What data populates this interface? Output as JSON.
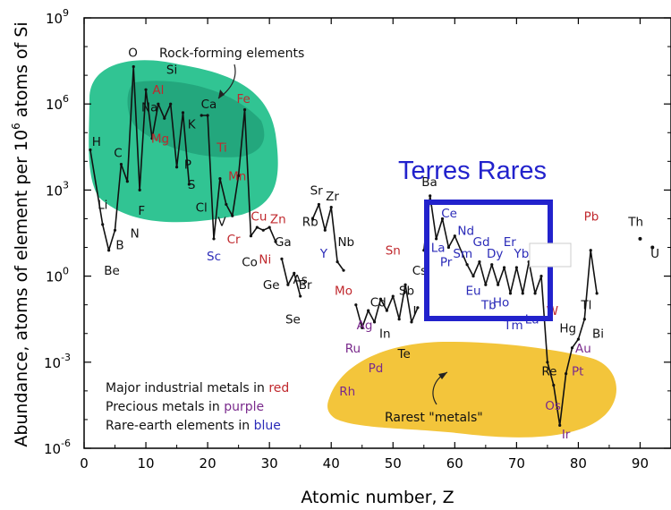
{
  "chart_data": {
    "type": "line",
    "xlabel": "Atomic number, Z",
    "ylabel": "Abundance, atoms of element per 10^6 atoms of Si",
    "xlim": [
      0,
      95
    ],
    "ylim_log10": [
      -6,
      9
    ],
    "x_ticks": [
      0,
      10,
      20,
      30,
      40,
      50,
      60,
      70,
      80,
      90
    ],
    "y_ticks": [
      {
        "exp": 9,
        "label": "10"
      },
      {
        "exp": 6,
        "label": "10"
      },
      {
        "exp": 3,
        "label": "10"
      },
      {
        "exp": 0,
        "label": "10"
      },
      {
        "exp": -3,
        "label": "10"
      },
      {
        "exp": -6,
        "label": "10"
      }
    ],
    "colors": {
      "industrial": "#c0282d",
      "precious": "#7a2a8c",
      "rare_earth": "#2b2bb8",
      "default": "#111111",
      "rock_region": "#1fbf8a",
      "rock_region_dark": "#178f6b",
      "rare_region": "#f2c230",
      "box": "#2222cc"
    },
    "segments": [
      [
        [
          1,
          4.4
        ],
        [
          3,
          1.8
        ],
        [
          4,
          0.9
        ],
        [
          5,
          1.6
        ],
        [
          6,
          3.9
        ],
        [
          7,
          3.3
        ],
        [
          8,
          7.3
        ],
        [
          9,
          3.0
        ],
        [
          10,
          6.5
        ],
        [
          11,
          4.8
        ],
        [
          12,
          6.0
        ],
        [
          13,
          5.5
        ],
        [
          14,
          6.0
        ],
        [
          15,
          3.8
        ],
        [
          16,
          5.7
        ],
        [
          17,
          3.2
        ]
      ],
      [
        [
          19,
          5.6
        ],
        [
          20,
          5.6
        ],
        [
          21,
          1.3
        ],
        [
          22,
          3.4
        ],
        [
          23,
          2.5
        ],
        [
          24,
          2.1
        ],
        [
          25,
          3.5
        ],
        [
          26,
          5.8
        ],
        [
          27,
          1.4
        ],
        [
          28,
          1.7
        ],
        [
          29,
          1.6
        ],
        [
          30,
          1.7
        ],
        [
          31,
          1.2
        ]
      ],
      [
        [
          32,
          0.6
        ],
        [
          33,
          -0.3
        ],
        [
          34,
          0.1
        ],
        [
          35,
          -0.7
        ]
      ],
      [
        [
          37,
          2.0
        ],
        [
          38,
          2.5
        ],
        [
          39,
          1.6
        ],
        [
          40,
          2.4
        ],
        [
          41,
          0.5
        ],
        [
          42,
          0.2
        ]
      ],
      [
        [
          44,
          -1.0
        ],
        [
          45,
          -1.8
        ],
        [
          46,
          -1.2
        ],
        [
          47,
          -1.6
        ],
        [
          48,
          -0.8
        ],
        [
          49,
          -1.2
        ],
        [
          50,
          -0.7
        ],
        [
          51,
          -1.5
        ],
        [
          52,
          -0.3
        ],
        [
          53,
          -1.6
        ],
        [
          54,
          -1.1
        ]
      ],
      [
        [
          55,
          0.9
        ],
        [
          56,
          2.8
        ],
        [
          57,
          1.3
        ],
        [
          58,
          2.0
        ],
        [
          59,
          1.0
        ],
        [
          60,
          1.4
        ],
        [
          62,
          0.4
        ],
        [
          63,
          0.0
        ],
        [
          64,
          0.5
        ],
        [
          65,
          -0.3
        ],
        [
          66,
          0.4
        ],
        [
          67,
          -0.3
        ],
        [
          68,
          0.3
        ],
        [
          69,
          -0.6
        ],
        [
          70,
          0.3
        ],
        [
          71,
          -0.6
        ],
        [
          72,
          0.5
        ],
        [
          73,
          -0.6
        ],
        [
          74,
          0.0
        ],
        [
          75,
          -3.0
        ],
        [
          76,
          -3.8
        ],
        [
          77,
          -5.2
        ],
        [
          78,
          -3.4
        ],
        [
          79,
          -2.5
        ],
        [
          80,
          -2.2
        ],
        [
          81,
          -1.5
        ],
        [
          82,
          0.9
        ],
        [
          83,
          -0.6
        ]
      ]
    ],
    "points": [
      [
        90,
        1.3
      ],
      [
        92,
        1.0
      ]
    ],
    "elements": [
      {
        "sym": "H",
        "cat": "default",
        "x": 2,
        "y": 4.7
      },
      {
        "sym": "Li",
        "cat": "default",
        "x": 3,
        "y": 2.5
      },
      {
        "sym": "Be",
        "cat": "default",
        "x": 4.5,
        "y": 0.2
      },
      {
        "sym": "B",
        "cat": "default",
        "x": 5.8,
        "y": 1.1
      },
      {
        "sym": "C",
        "cat": "default",
        "x": 5.5,
        "y": 4.3
      },
      {
        "sym": "N",
        "cat": "default",
        "x": 8.2,
        "y": 1.5
      },
      {
        "sym": "O",
        "cat": "default",
        "x": 7.9,
        "y": 7.8
      },
      {
        "sym": "F",
        "cat": "default",
        "x": 9.3,
        "y": 2.3
      },
      {
        "sym": "Na",
        "cat": "default",
        "x": 10.6,
        "y": 5.9
      },
      {
        "sym": "Mg",
        "cat": "industrial",
        "x": 12.3,
        "y": 4.8
      },
      {
        "sym": "Al",
        "cat": "industrial",
        "x": 12.0,
        "y": 6.5
      },
      {
        "sym": "Si",
        "cat": "default",
        "x": 14.2,
        "y": 7.2
      },
      {
        "sym": "P",
        "cat": "default",
        "x": 16.8,
        "y": 3.9
      },
      {
        "sym": "S",
        "cat": "default",
        "x": 17.4,
        "y": 3.2
      },
      {
        "sym": "Cl",
        "cat": "default",
        "x": 19.0,
        "y": 2.4
      },
      {
        "sym": "K",
        "cat": "default",
        "x": 17.4,
        "y": 5.3
      },
      {
        "sym": "Ca",
        "cat": "default",
        "x": 20.2,
        "y": 6.0
      },
      {
        "sym": "Sc",
        "cat": "rare_earth",
        "x": 21.0,
        "y": 0.7
      },
      {
        "sym": "Ti",
        "cat": "industrial",
        "x": 22.3,
        "y": 4.5
      },
      {
        "sym": "V",
        "cat": "default",
        "x": 22.3,
        "y": 1.9
      },
      {
        "sym": "Cr",
        "cat": "industrial",
        "x": 24.2,
        "y": 1.3
      },
      {
        "sym": "Mn",
        "cat": "industrial",
        "x": 24.8,
        "y": 3.5
      },
      {
        "sym": "Fe",
        "cat": "industrial",
        "x": 25.8,
        "y": 6.2
      },
      {
        "sym": "Co",
        "cat": "default",
        "x": 26.8,
        "y": 0.5
      },
      {
        "sym": "Ni",
        "cat": "industrial",
        "x": 29.3,
        "y": 0.6
      },
      {
        "sym": "Cu",
        "cat": "industrial",
        "x": 28.3,
        "y": 2.1
      },
      {
        "sym": "Zn",
        "cat": "industrial",
        "x": 31.4,
        "y": 2.0
      },
      {
        "sym": "Ga",
        "cat": "default",
        "x": 32.2,
        "y": 1.2
      },
      {
        "sym": "Ge",
        "cat": "default",
        "x": 30.3,
        "y": -0.3
      },
      {
        "sym": "As",
        "cat": "default",
        "x": 35.0,
        "y": -0.1
      },
      {
        "sym": "Se",
        "cat": "default",
        "x": 33.8,
        "y": -1.5
      },
      {
        "sym": "Br",
        "cat": "default",
        "x": 35.8,
        "y": -0.3
      },
      {
        "sym": "Rb",
        "cat": "default",
        "x": 36.6,
        "y": 1.9
      },
      {
        "sym": "Sr",
        "cat": "default",
        "x": 37.6,
        "y": 3.0
      },
      {
        "sym": "Zr",
        "cat": "default",
        "x": 40.2,
        "y": 2.8
      },
      {
        "sym": "Y",
        "cat": "rare_earth",
        "x": 38.8,
        "y": 0.8
      },
      {
        "sym": "Nb",
        "cat": "default",
        "x": 42.4,
        "y": 1.2
      },
      {
        "sym": "Mo",
        "cat": "industrial",
        "x": 42.0,
        "y": -0.5
      },
      {
        "sym": "Ru",
        "cat": "precious",
        "x": 43.5,
        "y": -2.5
      },
      {
        "sym": "Rh",
        "cat": "precious",
        "x": 42.6,
        "y": -4.0
      },
      {
        "sym": "Pd",
        "cat": "precious",
        "x": 47.2,
        "y": -3.2
      },
      {
        "sym": "Ag",
        "cat": "precious",
        "x": 45.4,
        "y": -1.7
      },
      {
        "sym": "Cd",
        "cat": "default",
        "x": 47.6,
        "y": -0.9
      },
      {
        "sym": "In",
        "cat": "default",
        "x": 48.7,
        "y": -2.0
      },
      {
        "sym": "Sn",
        "cat": "industrial",
        "x": 50.0,
        "y": 0.9
      },
      {
        "sym": "Sb",
        "cat": "default",
        "x": 52.2,
        "y": -0.5
      },
      {
        "sym": "Te",
        "cat": "default",
        "x": 51.8,
        "y": -2.7
      },
      {
        "sym": "I",
        "cat": "default",
        "x": 53.5,
        "y": -1.2
      },
      {
        "sym": "Cs",
        "cat": "default",
        "x": 54.3,
        "y": 0.2
      },
      {
        "sym": "Ba",
        "cat": "default",
        "x": 55.9,
        "y": 3.3
      },
      {
        "sym": "La",
        "cat": "rare_earth",
        "x": 57.3,
        "y": 1.0
      },
      {
        "sym": "Ce",
        "cat": "rare_earth",
        "x": 59.1,
        "y": 2.2
      },
      {
        "sym": "Pr",
        "cat": "rare_earth",
        "x": 58.6,
        "y": 0.5
      },
      {
        "sym": "Nd",
        "cat": "rare_earth",
        "x": 61.8,
        "y": 1.6
      },
      {
        "sym": "Sm",
        "cat": "rare_earth",
        "x": 61.3,
        "y": 0.8
      },
      {
        "sym": "Gd",
        "cat": "rare_earth",
        "x": 64.3,
        "y": 1.2
      },
      {
        "sym": "Eu",
        "cat": "rare_earth",
        "x": 63.0,
        "y": -0.5
      },
      {
        "sym": "Tb",
        "cat": "rare_earth",
        "x": 65.5,
        "y": -1.0
      },
      {
        "sym": "Dy",
        "cat": "rare_earth",
        "x": 66.5,
        "y": 0.8
      },
      {
        "sym": "Ho",
        "cat": "rare_earth",
        "x": 67.5,
        "y": -0.9
      },
      {
        "sym": "Er",
        "cat": "rare_earth",
        "x": 68.9,
        "y": 1.2
      },
      {
        "sym": "Tm",
        "cat": "rare_earth",
        "x": 69.5,
        "y": -1.7
      },
      {
        "sym": "Yb",
        "cat": "rare_earth",
        "x": 70.8,
        "y": 0.8
      },
      {
        "sym": "Lu",
        "cat": "rare_earth",
        "x": 72.5,
        "y": -1.5
      },
      {
        "sym": "W",
        "cat": "industrial",
        "x": 75.8,
        "y": -1.2
      },
      {
        "sym": "Re",
        "cat": "default",
        "x": 75.3,
        "y": -3.3
      },
      {
        "sym": "Os",
        "cat": "precious",
        "x": 75.9,
        "y": -4.5
      },
      {
        "sym": "Ir",
        "cat": "precious",
        "x": 78.0,
        "y": -5.5
      },
      {
        "sym": "Pt",
        "cat": "precious",
        "x": 79.9,
        "y": -3.3
      },
      {
        "sym": "Au",
        "cat": "precious",
        "x": 80.8,
        "y": -2.5
      },
      {
        "sym": "Hg",
        "cat": "default",
        "x": 78.3,
        "y": -1.8
      },
      {
        "sym": "Tl",
        "cat": "default",
        "x": 81.3,
        "y": -1.0
      },
      {
        "sym": "Pb",
        "cat": "industrial",
        "x": 82.1,
        "y": 2.1
      },
      {
        "sym": "Bi",
        "cat": "default",
        "x": 83.2,
        "y": -2.0
      },
      {
        "sym": "Th",
        "cat": "default",
        "x": 89.3,
        "y": 1.9
      },
      {
        "sym": "U",
        "cat": "default",
        "x": 92.4,
        "y": 0.8
      }
    ]
  },
  "annotations": {
    "rock_forming": "Rock-forming elements",
    "rarest_metals": "Rarest \"metals\"",
    "rare_earths_title": "Terres Rares"
  },
  "legend": {
    "industrial_prefix": "Major industrial metals in ",
    "industrial_word": "red",
    "precious_prefix": "Precious metals in ",
    "precious_word": "purple",
    "rare_prefix": "Rare-earth elements in ",
    "rare_word": "blue"
  }
}
